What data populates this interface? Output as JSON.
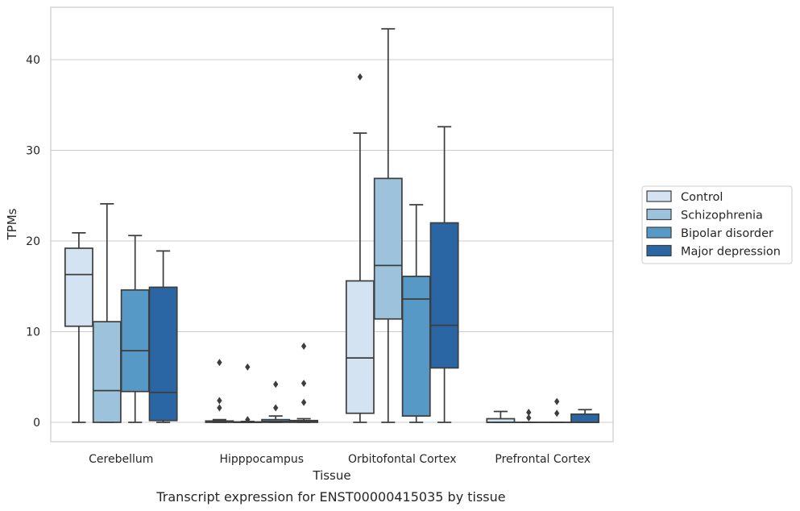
{
  "caption": "Transcript expression for ENST00000415035 by tissue",
  "chart_data": {
    "type": "box",
    "title": "",
    "xlabel": "Tissue",
    "ylabel": "TPMs",
    "ylim": [
      -2,
      45
    ],
    "yticks": [
      0,
      10,
      20,
      30,
      40
    ],
    "grid": "horizontal",
    "legend_position": "right",
    "categories": [
      "Cerebellum",
      "Hipppocampus",
      "Orbitofontal Cortex",
      "Prefrontal Cortex"
    ],
    "series": [
      {
        "name": "Control",
        "color": "#d3e3f2",
        "boxes": [
          {
            "whislo": 0,
            "q1": 10.6,
            "med": 16.3,
            "q3": 19.2,
            "whishi": 20.9,
            "fliers": []
          },
          {
            "whislo": 0,
            "q1": 0,
            "med": 0.05,
            "q3": 0.15,
            "whishi": 0.3,
            "fliers": [
              1.6,
              2.4,
              6.6
            ]
          },
          {
            "whislo": 0,
            "q1": 1.0,
            "med": 7.1,
            "q3": 15.6,
            "whishi": 31.9,
            "fliers": [
              38.1
            ]
          },
          {
            "whislo": 0,
            "q1": 0,
            "med": 0,
            "q3": 0.4,
            "whishi": 1.2,
            "fliers": []
          }
        ]
      },
      {
        "name": "Schizophrenia",
        "color": "#9cc2dc",
        "boxes": [
          {
            "whislo": 0,
            "q1": 0,
            "med": 3.5,
            "q3": 11.1,
            "whishi": 24.1,
            "fliers": []
          },
          {
            "whislo": 0,
            "q1": 0,
            "med": 0,
            "q3": 0.05,
            "whishi": 0.1,
            "fliers": [
              0.3,
              6.1
            ]
          },
          {
            "whislo": 0,
            "q1": 11.4,
            "med": 17.3,
            "q3": 26.9,
            "whishi": 43.4,
            "fliers": []
          },
          {
            "whislo": 0,
            "q1": 0,
            "med": 0,
            "q3": 0,
            "whishi": 0,
            "fliers": [
              0.5,
              1.1
            ]
          }
        ]
      },
      {
        "name": "Bipolar disorder",
        "color": "#5799c6",
        "boxes": [
          {
            "whislo": 0,
            "q1": 3.4,
            "med": 7.9,
            "q3": 14.6,
            "whishi": 20.6,
            "fliers": []
          },
          {
            "whislo": 0,
            "q1": 0,
            "med": 0.1,
            "q3": 0.3,
            "whishi": 0.7,
            "fliers": [
              1.6,
              4.2
            ]
          },
          {
            "whislo": 0,
            "q1": 0.7,
            "med": 13.6,
            "q3": 16.1,
            "whishi": 24.0,
            "fliers": []
          },
          {
            "whislo": 0,
            "q1": 0,
            "med": 0,
            "q3": 0,
            "whishi": 0,
            "fliers": [
              1.0,
              2.3
            ]
          }
        ]
      },
      {
        "name": "Major depression",
        "color": "#2b66a4",
        "boxes": [
          {
            "whislo": 0,
            "q1": 0.2,
            "med": 3.3,
            "q3": 14.9,
            "whishi": 18.9,
            "fliers": []
          },
          {
            "whislo": 0,
            "q1": 0,
            "med": 0.1,
            "q3": 0.2,
            "whishi": 0.4,
            "fliers": [
              2.2,
              4.3,
              8.4
            ]
          },
          {
            "whislo": 0,
            "q1": 6.0,
            "med": 10.7,
            "q3": 22.0,
            "whishi": 32.6,
            "fliers": []
          },
          {
            "whislo": 0,
            "q1": 0,
            "med": 0,
            "q3": 0.9,
            "whishi": 1.4,
            "fliers": []
          }
        ]
      }
    ]
  }
}
